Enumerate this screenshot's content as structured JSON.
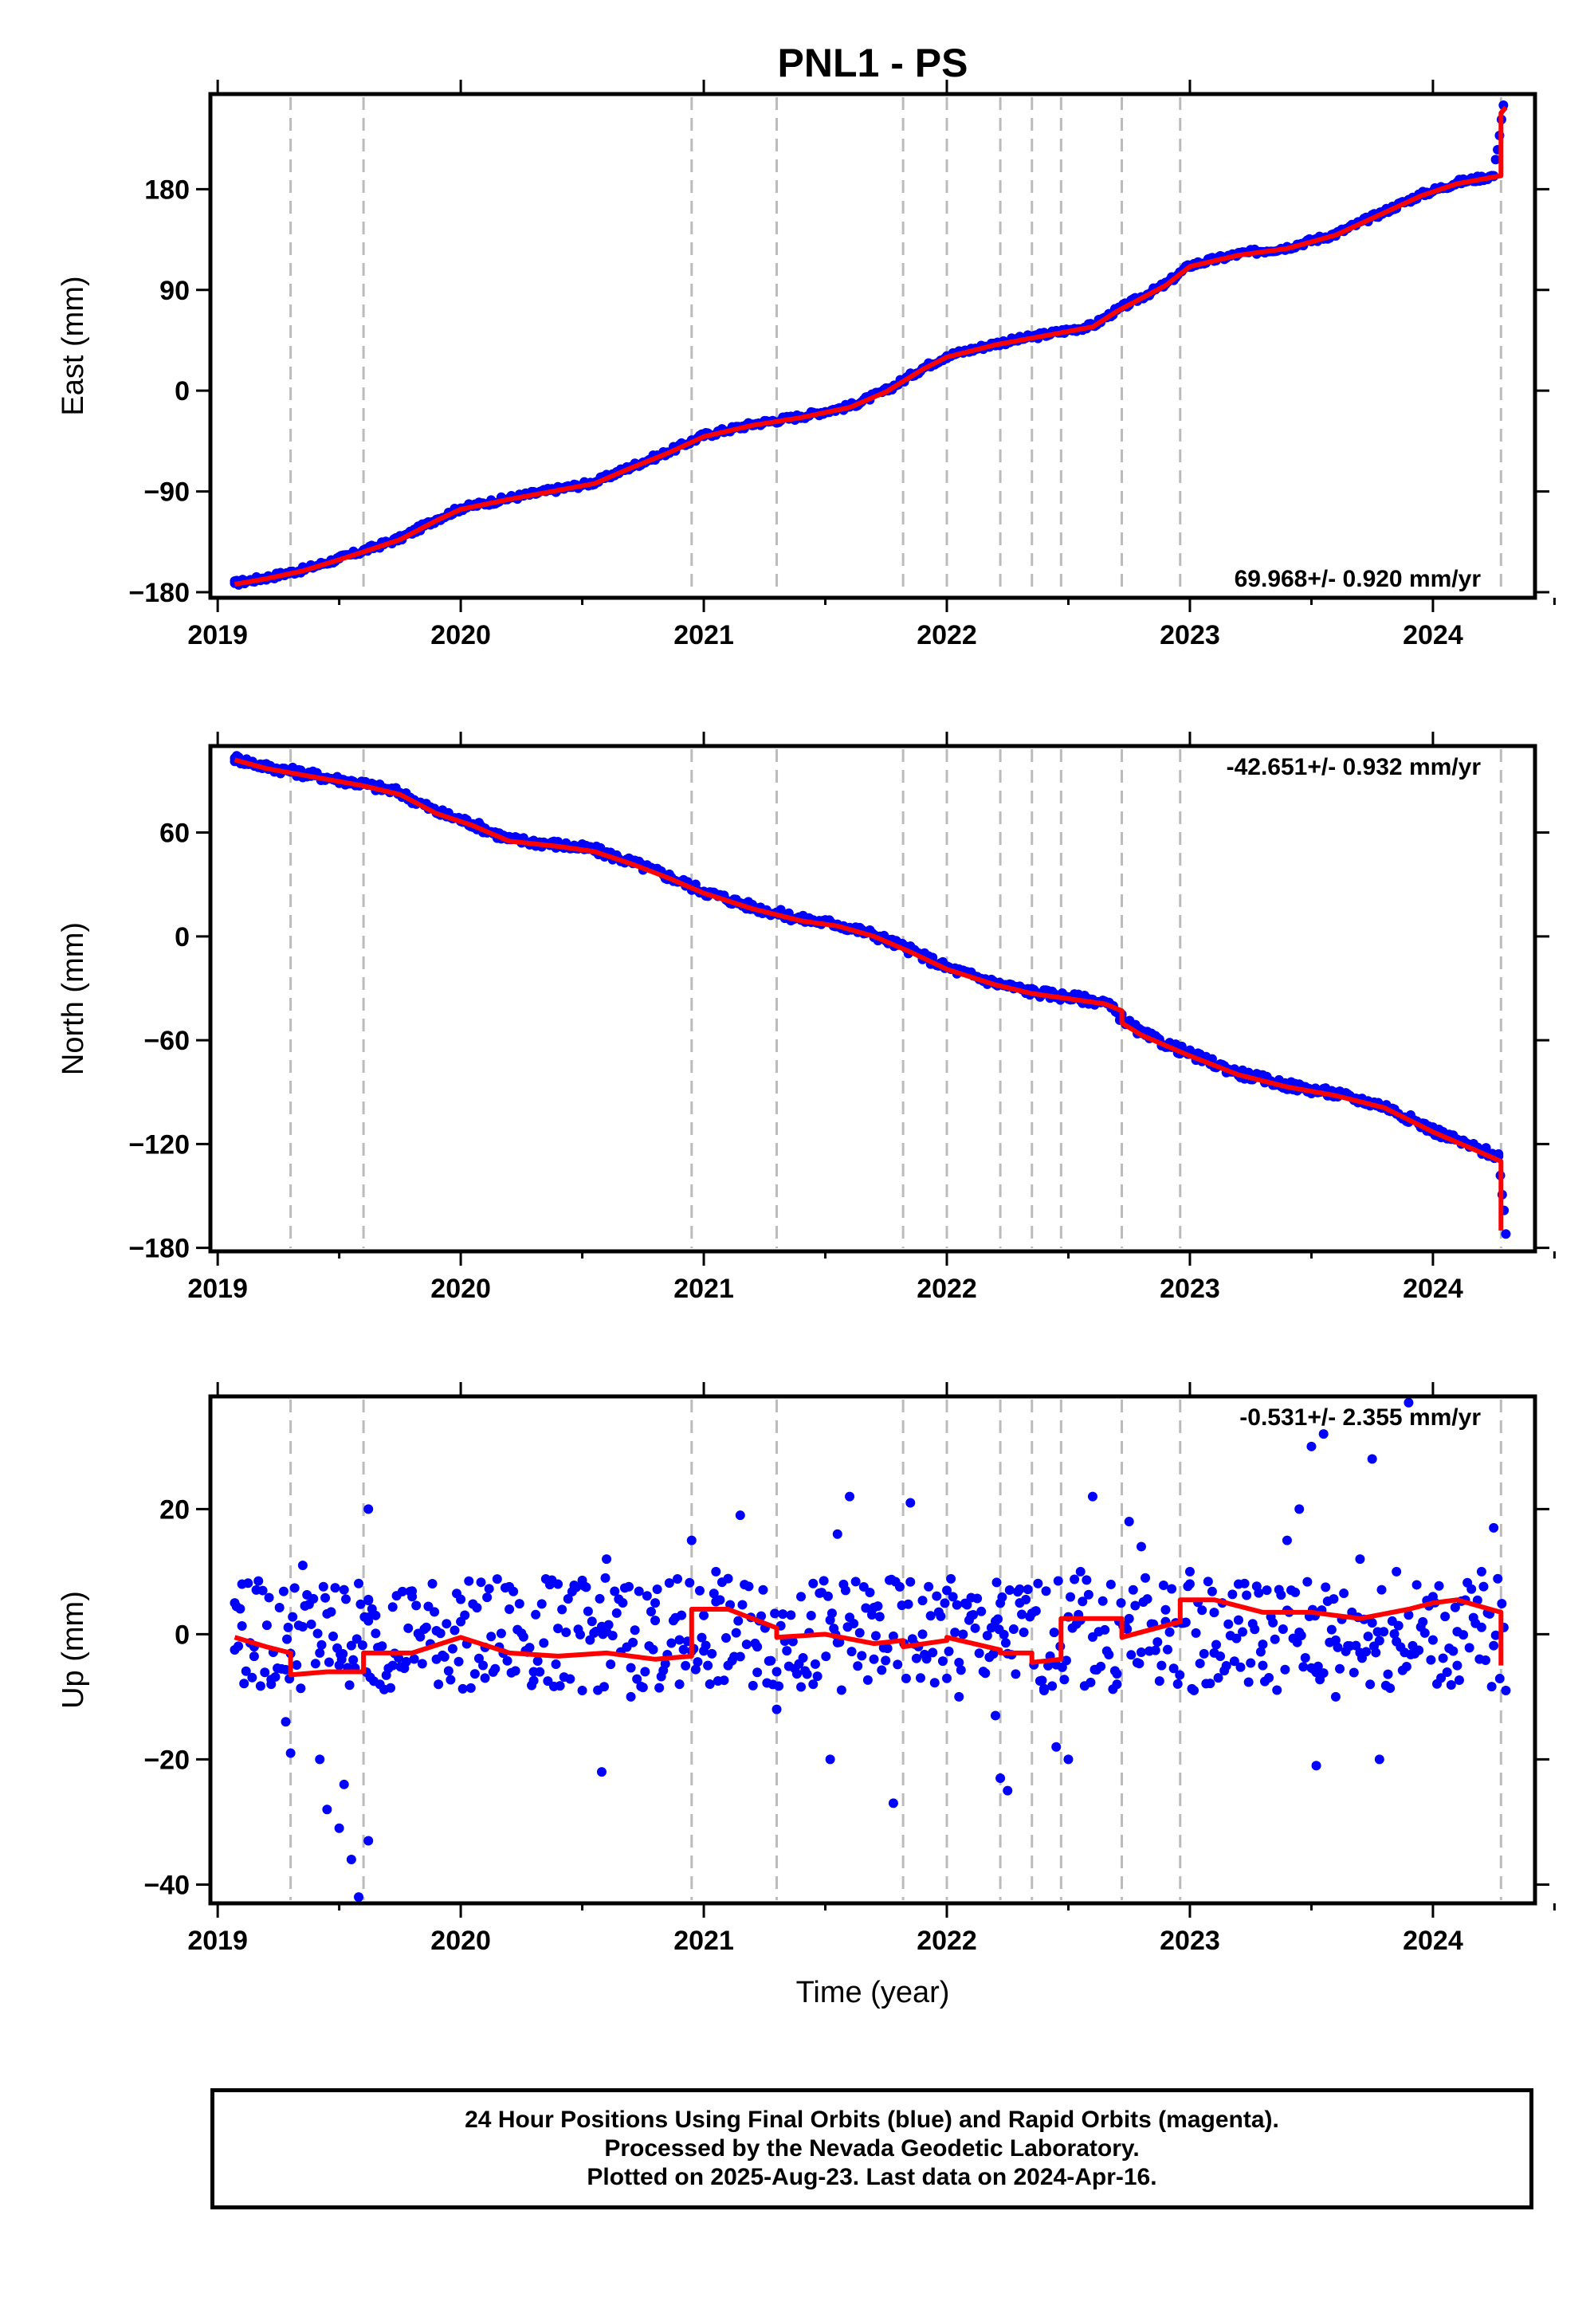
{
  "title": "PNL1 - PS",
  "colors": {
    "points": "#0000ff",
    "model": "#ff0000",
    "steps": "#bbbbbb",
    "frame": "#000000"
  },
  "caption": {
    "line1": "24 Hour Positions Using Final Orbits (blue) and Rapid Orbits (magenta).",
    "line2": "Processed by the Nevada Geodetic Laboratory.",
    "line3": "Plotted on 2025-Aug-23. Last data on 2024-Apr-16."
  },
  "chart_data": [
    {
      "type": "scatter",
      "panel": "east",
      "title": "PNL1 - PS",
      "ylabel": "East (mm)",
      "xlabel": "",
      "xlim": [
        2018.97,
        2024.42
      ],
      "ylim": [
        -185,
        265
      ],
      "yticks": [
        -180,
        -90,
        0,
        90,
        180
      ],
      "ytick_labels": [
        "−180",
        "−90",
        "0",
        "90",
        "180"
      ],
      "xticks": [
        2019,
        2020,
        2021,
        2022,
        2023,
        2024
      ],
      "xtick_labels": [
        "2019",
        "2020",
        "2021",
        "2022",
        "2023",
        "2024"
      ],
      "rate_label": "69.968+/- 0.920 mm/yr",
      "rate_label_position": "bottom-right",
      "steps": [
        2019.3,
        2019.6,
        2020.95,
        2021.3,
        2021.82,
        2022.0,
        2022.22,
        2022.35,
        2022.47,
        2022.72,
        2022.96,
        2024.28
      ],
      "series": [
        {
          "name": "Final Orbits (blue)",
          "style": "points",
          "x": [
            2019.07,
            2019.2,
            2019.35,
            2019.5,
            2019.6,
            2019.75,
            2019.9,
            2020.0,
            2020.2,
            2020.4,
            2020.55,
            2020.7,
            2020.85,
            2021.0,
            2021.2,
            2021.4,
            2021.6,
            2021.75,
            2021.9,
            2022.0,
            2022.2,
            2022.4,
            2022.6,
            2022.7,
            2022.9,
            2023.0,
            2023.2,
            2023.4,
            2023.6,
            2023.8,
            2023.95,
            2024.1,
            2024.25,
            2024.29
          ],
          "y": [
            -172,
            -167,
            -160,
            -150,
            -143,
            -132,
            -115,
            -105,
            -96,
            -88,
            -82,
            -68,
            -55,
            -40,
            -30,
            -23,
            -14,
            0,
            20,
            31,
            42,
            50,
            58,
            72,
            95,
            112,
            122,
            128,
            140,
            160,
            175,
            186,
            192,
            255
          ]
        },
        {
          "name": "Model",
          "style": "line",
          "x": [
            2019.07,
            2019.2,
            2019.35,
            2019.5,
            2019.6,
            2019.75,
            2019.9,
            2020.0,
            2020.2,
            2020.4,
            2020.55,
            2020.7,
            2020.85,
            2021.0,
            2021.2,
            2021.4,
            2021.6,
            2021.75,
            2021.9,
            2022.0,
            2022.2,
            2022.4,
            2022.6,
            2022.7,
            2022.9,
            2023.0,
            2023.2,
            2023.4,
            2023.6,
            2023.8,
            2023.95,
            2024.1,
            2024.28,
            2024.28,
            2024.3
          ],
          "y": [
            -173,
            -168,
            -161,
            -151,
            -144,
            -133,
            -116,
            -106,
            -97,
            -89,
            -83,
            -69,
            -56,
            -41,
            -31,
            -24,
            -15,
            -1,
            19,
            30,
            41,
            49,
            57,
            71,
            94,
            111,
            121,
            127,
            139,
            159,
            174,
            185,
            192,
            248,
            253
          ]
        }
      ]
    },
    {
      "type": "scatter",
      "panel": "north",
      "ylabel": "North (mm)",
      "xlabel": "",
      "xlim": [
        2018.97,
        2024.42
      ],
      "ylim": [
        -182,
        110
      ],
      "yticks": [
        -180,
        -120,
        -60,
        0,
        60
      ],
      "ytick_labels": [
        "−180",
        "−120",
        "−60",
        "0",
        "60"
      ],
      "xticks": [
        2019,
        2020,
        2021,
        2022,
        2023,
        2024
      ],
      "xtick_labels": [
        "2019",
        "2020",
        "2021",
        "2022",
        "2023",
        "2024"
      ],
      "rate_label": "-42.651+/- 0.932 mm/yr",
      "rate_label_position": "top-right",
      "steps": [
        2019.3,
        2019.6,
        2020.95,
        2021.3,
        2021.82,
        2022.0,
        2022.22,
        2022.35,
        2022.47,
        2022.72,
        2022.96,
        2024.28
      ],
      "series": [
        {
          "name": "Final Orbits (blue)",
          "style": "points",
          "x": [
            2019.07,
            2019.2,
            2019.4,
            2019.6,
            2019.75,
            2019.9,
            2020.05,
            2020.2,
            2020.4,
            2020.55,
            2020.7,
            2020.85,
            2021.0,
            2021.2,
            2021.4,
            2021.55,
            2021.7,
            2021.85,
            2022.0,
            2022.2,
            2022.35,
            2022.5,
            2022.65,
            2022.72,
            2022.8,
            2023.0,
            2023.2,
            2023.4,
            2023.6,
            2023.8,
            2024.0,
            2024.15,
            2024.27,
            2024.3
          ],
          "y": [
            103,
            98,
            93,
            88,
            83,
            72,
            65,
            56,
            53,
            50,
            43,
            35,
            26,
            17,
            10,
            7,
            1,
            -8,
            -18,
            -27,
            -32,
            -35,
            -38,
            -47,
            -56,
            -68,
            -79,
            -86,
            -91,
            -98,
            -112,
            -121,
            -127,
            -172
          ]
        },
        {
          "name": "Model",
          "style": "line",
          "x": [
            2019.07,
            2019.2,
            2019.4,
            2019.6,
            2019.75,
            2019.9,
            2020.05,
            2020.2,
            2020.4,
            2020.55,
            2020.7,
            2020.85,
            2021.0,
            2021.2,
            2021.4,
            2021.55,
            2021.7,
            2021.85,
            2022.0,
            2022.2,
            2022.35,
            2022.5,
            2022.65,
            2022.72,
            2022.72,
            2022.8,
            2023.0,
            2023.2,
            2023.4,
            2023.6,
            2023.8,
            2024.0,
            2024.15,
            2024.28,
            2024.28
          ],
          "y": [
            102,
            97,
            92,
            87,
            82,
            71,
            64,
            55,
            52,
            49,
            42,
            34,
            25,
            16,
            9,
            6,
            0,
            -9,
            -19,
            -28,
            -33,
            -36,
            -39,
            -43,
            -50,
            -57,
            -69,
            -80,
            -87,
            -92,
            -99,
            -113,
            -122,
            -130,
            -170
          ]
        }
      ]
    },
    {
      "type": "scatter",
      "panel": "up",
      "ylabel": "Up (mm)",
      "xlabel": "Time (year)",
      "xlim": [
        2018.97,
        2024.42
      ],
      "ylim": [
        -43,
        38
      ],
      "yticks": [
        -40,
        -20,
        0,
        20
      ],
      "ytick_labels": [
        "−40",
        "−20",
        "0",
        "20"
      ],
      "xticks": [
        2019,
        2020,
        2021,
        2022,
        2023,
        2024
      ],
      "xtick_labels": [
        "2019",
        "2020",
        "2021",
        "2022",
        "2023",
        "2024"
      ],
      "rate_label": "-0.531+/- 2.355 mm/yr",
      "rate_label_position": "top-right",
      "steps": [
        2019.3,
        2019.6,
        2020.95,
        2021.3,
        2021.82,
        2022.0,
        2022.22,
        2022.35,
        2022.47,
        2022.72,
        2022.96,
        2024.28
      ],
      "series": [
        {
          "name": "Final Orbits (blue)",
          "style": "points",
          "x": [
            2019.07,
            2019.1,
            2019.15,
            2019.22,
            2019.28,
            2019.3,
            2019.35,
            2019.42,
            2019.45,
            2019.5,
            2019.52,
            2019.55,
            2019.58,
            2019.62,
            2019.62,
            2019.65,
            2019.72,
            2019.8,
            2019.9,
            2020.0,
            2020.1,
            2020.2,
            2020.3,
            2020.4,
            2020.5,
            2020.58,
            2020.6,
            2020.7,
            2020.8,
            2020.9,
            2020.95,
            2021.0,
            2021.05,
            2021.1,
            2021.15,
            2021.22,
            2021.3,
            2021.4,
            2021.45,
            2021.52,
            2021.55,
            2021.6,
            2021.7,
            2021.78,
            2021.85,
            2021.9,
            2022.0,
            2022.05,
            2022.1,
            2022.2,
            2022.22,
            2022.25,
            2022.3,
            2022.4,
            2022.45,
            2022.5,
            2022.55,
            2022.6,
            2022.7,
            2022.75,
            2022.8,
            2022.9,
            2023.0,
            2023.1,
            2023.2,
            2023.3,
            2023.4,
            2023.45,
            2023.5,
            2023.52,
            2023.55,
            2023.6,
            2023.7,
            2023.75,
            2023.78,
            2023.85,
            2023.9,
            2024.0,
            2024.1,
            2024.2,
            2024.25,
            2024.3
          ],
          "y": [
            5,
            8,
            -2,
            -8,
            -14,
            -19,
            11,
            -20,
            -28,
            -31,
            -24,
            -36,
            -42,
            20,
            -33,
            3,
            -5,
            6,
            -4,
            2,
            -7,
            4,
            -6,
            8,
            -9,
            -22,
            12,
            -10,
            5,
            -8,
            15,
            3,
            10,
            -5,
            19,
            -2,
            -12,
            6,
            -8,
            -20,
            16,
            22,
            -4,
            -27,
            21,
            0,
            7,
            -10,
            3,
            -13,
            -23,
            -25,
            5,
            -9,
            -18,
            -20,
            10,
            22,
            -8,
            18,
            14,
            2,
            10,
            -3,
            8,
            -5,
            15,
            20,
            30,
            -21,
            32,
            -10,
            12,
            28,
            -20,
            10,
            37,
            6,
            -5,
            10,
            17,
            -9
          ],
          "note": "approximate representative subset of visible daily positions"
        },
        {
          "name": "Model",
          "style": "line",
          "x": [
            2019.07,
            2019.2,
            2019.3,
            2019.3,
            2019.45,
            2019.6,
            2019.6,
            2019.8,
            2020.0,
            2020.2,
            2020.4,
            2020.6,
            2020.8,
            2020.95,
            2020.95,
            2021.1,
            2021.3,
            2021.3,
            2021.5,
            2021.7,
            2021.82,
            2021.82,
            2022.0,
            2022.0,
            2022.22,
            2022.22,
            2022.35,
            2022.35,
            2022.47,
            2022.47,
            2022.72,
            2022.72,
            2022.96,
            2022.96,
            2023.1,
            2023.3,
            2023.5,
            2023.7,
            2023.9,
            2024.0,
            2024.1,
            2024.28,
            2024.28
          ],
          "y": [
            -0.5,
            -2,
            -3,
            -6.5,
            -6,
            -6,
            -3,
            -3,
            -0.5,
            -3,
            -3.5,
            -3,
            -4,
            -3.5,
            4,
            4,
            1,
            -0.5,
            0,
            -1.5,
            -1,
            -2,
            -1,
            -0.5,
            -2.5,
            -3,
            -3,
            -4.5,
            -4,
            2.5,
            2.5,
            -0.5,
            2,
            5.5,
            5.5,
            3.5,
            3.5,
            2.5,
            4,
            5,
            5.5,
            3.5,
            -5
          ]
        }
      ]
    }
  ]
}
